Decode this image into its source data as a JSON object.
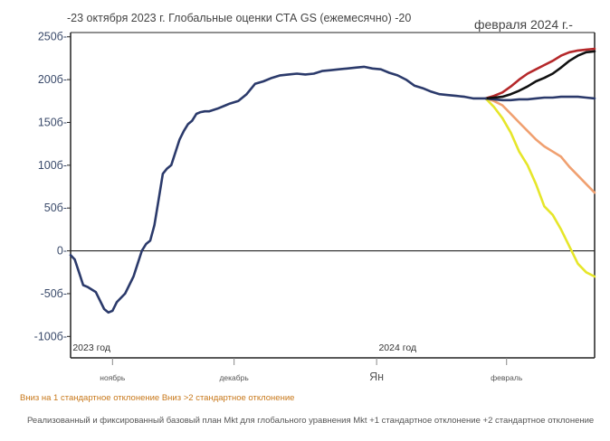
{
  "title_left": "-23 октября 2023 г. Глобальные оценки СТА GS (ежемесячно) -20",
  "title_right": "февраля 2024 г.-",
  "legend_line1": "Вниз на 1 стандартное отклонение Вниз >2 стандартное отклонение",
  "legend_line2": "Реализованный и фиксированный базовый план Mkt для глобального уравнения Mkt +1 стандартное отклонение +2 стандартное отклонение",
  "colors": {
    "base": "#2b3a6b",
    "black": "#111111",
    "red": "#b5282a",
    "orange": "#f0a070",
    "yellow": "#e6e62a",
    "axis": "#222222",
    "tick_text": "#3a4a6a"
  },
  "chart_data": {
    "type": "line",
    "title": "-23 октября 2023 г. Глобальные оценки СТА GS (ежемесячно) -20 февраля 2024 г.-",
    "ylim": [
      -125,
      255
    ],
    "xlim": [
      0,
      125
    ],
    "y_ticks": [
      250,
      200,
      150,
      100,
      50,
      0,
      -50,
      -100
    ],
    "y_tick_labels": [
      "250б-",
      "200б-",
      "150б-",
      "100б-",
      "50б-",
      "0-",
      "-50б-",
      "-100б-"
    ],
    "year_labels": [
      {
        "x": 5,
        "label": "2023 год"
      },
      {
        "x": 78,
        "label": "2024 год"
      }
    ],
    "x_ticks": [
      {
        "x": 10,
        "label": "ноябрь"
      },
      {
        "x": 39,
        "label": "декабрь"
      },
      {
        "x": 73,
        "label": "Ян"
      },
      {
        "x": 104,
        "label": "февраль"
      }
    ],
    "series": [
      {
        "name": "Реализованный и фиксированный",
        "color": "#2b3a6b",
        "x": [
          0,
          1,
          2,
          3,
          4,
          6,
          8,
          9,
          10,
          11,
          13,
          15,
          16,
          17,
          18,
          19,
          20,
          21,
          22,
          23,
          24,
          25,
          26,
          27,
          28,
          29,
          30,
          31,
          32,
          33,
          35,
          37,
          38,
          40,
          42,
          44,
          46,
          48,
          50,
          52,
          54,
          56,
          58,
          60,
          62,
          64,
          66,
          68,
          70,
          72,
          74,
          76,
          78,
          80,
          82,
          84,
          86,
          88,
          90,
          92,
          94,
          95,
          96,
          97,
          98,
          99
        ],
        "y": [
          -5,
          -10,
          -25,
          -40,
          -42,
          -48,
          -68,
          -72,
          -70,
          -60,
          -50,
          -30,
          -15,
          0,
          8,
          12,
          30,
          60,
          90,
          96,
          100,
          115,
          130,
          140,
          148,
          152,
          160,
          162,
          163,
          163,
          166,
          170,
          172,
          175,
          183,
          195,
          198,
          202,
          205,
          206,
          207,
          206,
          207,
          210,
          211,
          212,
          213,
          214,
          215,
          213,
          212,
          208,
          205,
          200,
          193,
          190,
          186,
          183,
          182,
          181,
          180,
          179,
          178,
          178,
          178,
          178
        ]
      },
      {
        "name": "базовый план Mkt",
        "color": "#2b3a6b",
        "x": [
          99,
          101,
          103,
          105,
          107,
          109,
          111,
          113,
          115,
          117,
          119,
          121,
          123,
          125
        ],
        "y": [
          178,
          177,
          176,
          176,
          177,
          177,
          178,
          179,
          179,
          180,
          180,
          180,
          179,
          178
        ]
      },
      {
        "name": "+1 стандартное отклонение",
        "color": "#111111",
        "x": [
          99,
          101,
          103,
          105,
          107,
          109,
          111,
          113,
          115,
          117,
          119,
          121,
          123,
          125
        ],
        "y": [
          178,
          179,
          180,
          183,
          187,
          192,
          198,
          202,
          207,
          214,
          222,
          228,
          232,
          233
        ]
      },
      {
        "name": "+2 стандартное отклонение",
        "color": "#b5282a",
        "x": [
          99,
          101,
          103,
          105,
          107,
          109,
          111,
          113,
          115,
          117,
          119,
          121,
          123,
          125
        ],
        "y": [
          178,
          181,
          185,
          192,
          200,
          207,
          212,
          217,
          222,
          228,
          232,
          234,
          235,
          236
        ]
      },
      {
        "name": "Вниз на 1 стандартное отклонение",
        "color": "#f0a070",
        "x": [
          99,
          101,
          103,
          105,
          107,
          109,
          111,
          113,
          115,
          117,
          119,
          121,
          123,
          125
        ],
        "y": [
          178,
          175,
          170,
          160,
          150,
          140,
          130,
          122,
          116,
          110,
          98,
          88,
          78,
          68
        ]
      },
      {
        "name": "Вниз >2 стандартное отклонение",
        "color": "#e6e62a",
        "x": [
          99,
          101,
          103,
          105,
          107,
          109,
          111,
          113,
          115,
          117,
          119,
          121,
          123,
          125
        ],
        "y": [
          178,
          168,
          155,
          138,
          116,
          100,
          78,
          52,
          42,
          25,
          5,
          -15,
          -25,
          -30
        ]
      }
    ]
  }
}
